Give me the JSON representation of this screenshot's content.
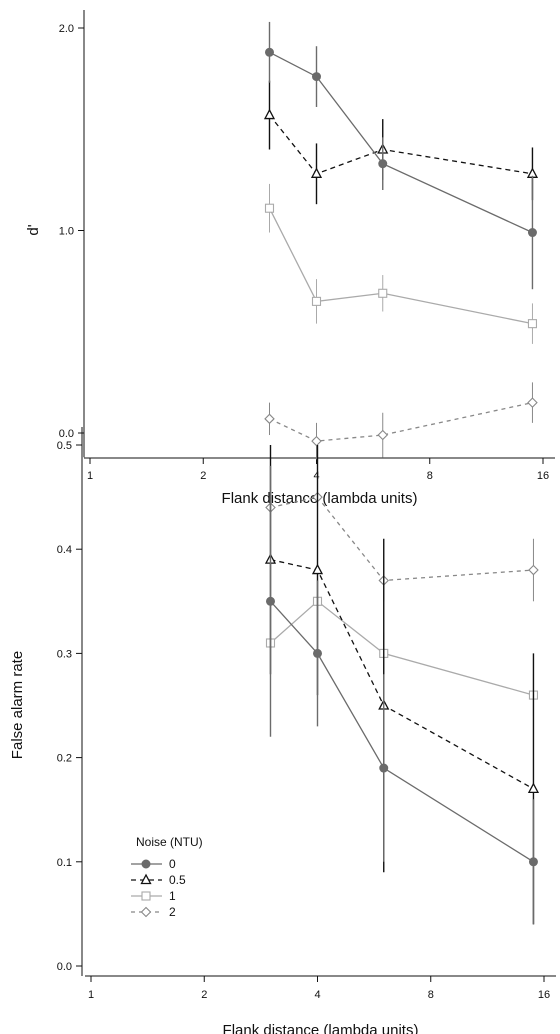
{
  "legend": {
    "title": "Noise (NTU)"
  },
  "series_styles": [
    {
      "name": "0",
      "color": "#6b6b6b",
      "dash": "",
      "marker": "filled-circle"
    },
    {
      "name": "0.5",
      "color": "#111111",
      "dash": "5,4",
      "marker": "open-triangle"
    },
    {
      "name": "1",
      "color": "#aaaaaa",
      "dash": "",
      "marker": "open-square"
    },
    {
      "name": "2",
      "color": "#888888",
      "dash": "4,4",
      "marker": "open-diamond"
    }
  ],
  "chart_data": [
    {
      "type": "line",
      "xlabel": "Flank distance (lambda units)",
      "ylabel": "d'",
      "xscale": "log2",
      "xlim": [
        1,
        16
      ],
      "xticks": [
        1,
        2,
        4,
        8,
        16
      ],
      "xtick_labels": [
        "1",
        "2",
        "4",
        "8",
        "16"
      ],
      "ylim": [
        -0.12,
        2.08
      ],
      "yticks": [
        0.0,
        1.0,
        2.0
      ],
      "ytick_labels": [
        "0.0",
        "1.0",
        "2.0"
      ],
      "x": [
        3,
        4,
        6,
        15
      ],
      "series": [
        {
          "name": "0",
          "values": [
            1.88,
            1.76,
            1.33,
            0.99
          ],
          "errors": [
            0.15,
            0.15,
            0.13,
            0.28
          ]
        },
        {
          "name": "0.5",
          "values": [
            1.57,
            1.28,
            1.4,
            1.28
          ],
          "errors": [
            0.17,
            0.15,
            0.15,
            0.13
          ]
        },
        {
          "name": "1",
          "values": [
            1.11,
            0.65,
            0.69,
            0.54
          ],
          "errors": [
            0.12,
            0.11,
            0.09,
            0.1
          ]
        },
        {
          "name": "2",
          "values": [
            0.07,
            -0.04,
            -0.01,
            0.15
          ],
          "errors": [
            0.08,
            0.09,
            0.11,
            0.1
          ]
        }
      ]
    },
    {
      "type": "line",
      "xlabel": "Flank distance (lambda units)",
      "ylabel": "False alarm rate",
      "xscale": "log2",
      "xlim": [
        1,
        16
      ],
      "xticks": [
        1,
        2,
        4,
        8,
        16
      ],
      "xtick_labels": [
        "1",
        "2",
        "4",
        "8",
        "16"
      ],
      "ylim": [
        0.0,
        0.5
      ],
      "yticks": [
        0.0,
        0.1,
        0.2,
        0.3,
        0.4,
        0.5
      ],
      "ytick_labels": [
        "0.0",
        "0.1",
        "0.2",
        "0.3",
        "0.4",
        "0.5"
      ],
      "x": [
        3,
        4,
        6,
        15
      ],
      "series": [
        {
          "name": "0",
          "values": [
            0.35,
            0.3,
            0.19,
            0.1
          ],
          "errors": [
            0.13,
            0.07,
            0.09,
            0.06
          ]
        },
        {
          "name": "0.5",
          "values": [
            0.39,
            0.38,
            0.25,
            0.17
          ],
          "errors": [
            0.11,
            0.12,
            0.16,
            0.13
          ]
        },
        {
          "name": "1",
          "values": [
            0.31,
            0.35,
            0.3,
            0.26
          ],
          "errors": [
            0.03,
            0.03,
            0.02,
            0.02
          ]
        },
        {
          "name": "2",
          "values": [
            0.44,
            0.45,
            0.37,
            0.38
          ],
          "errors": [
            0.03,
            0.02,
            0.02,
            0.03
          ]
        }
      ]
    }
  ]
}
